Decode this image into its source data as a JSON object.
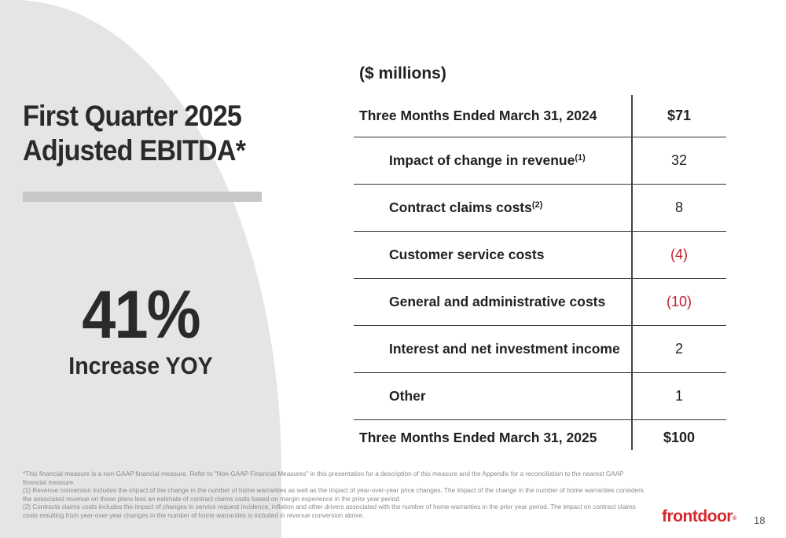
{
  "left": {
    "title_line1": "First Quarter 2025",
    "title_line2": "Adjusted EBITDA*",
    "big_number": "41%",
    "big_caption": "Increase YOY"
  },
  "bridge": {
    "units": "($ millions)",
    "start": {
      "label": "Three Months Ended March 31, 2024",
      "value": "$71"
    },
    "items": [
      {
        "label": "Impact of change in revenue",
        "note": "(1)",
        "value": "32"
      },
      {
        "label": "Contract claims costs",
        "note": "(2)",
        "value": "8"
      },
      {
        "label": "Customer service costs",
        "note": "",
        "value": "(4)"
      },
      {
        "label": "General and administrative costs",
        "note": "",
        "value": "(10)"
      },
      {
        "label": "Interest and net investment income",
        "note": "",
        "value": "2"
      },
      {
        "label": "Other",
        "note": "",
        "value": "1"
      }
    ],
    "end": {
      "label": "Three Months Ended March 31, 2025",
      "value": "$100"
    },
    "negative_color": "#c0202a"
  },
  "footnotes": [
    "*This financial measure is a non-GAAP financial measure. Refer to \"Non-GAAP Financial Measures\" in this presentation for a description of this measure and the Appendix for a reconciliation to the nearest GAAP financial measure.",
    "(1) Revenue conversion includes the impact of the change in the number of home warranties as well as the impact of year-over-year price changes. The impact of the change in the number of home warranties considers the associated revenue on those plans less an estimate of contract claims costs based on margin experience in the prior year period.",
    "(2) Contracts claims costs includes the impact of changes in service request incidence, inflation and other drivers associated with the number of home warranties in the prior year period. The impact on contract claims costs resulting from year-over-year changes in the number of home warranties is included in revenue conversion above."
  ],
  "brand": {
    "logo_text": "frontdoor",
    "color": "#d6282c"
  },
  "page_number": "18"
}
